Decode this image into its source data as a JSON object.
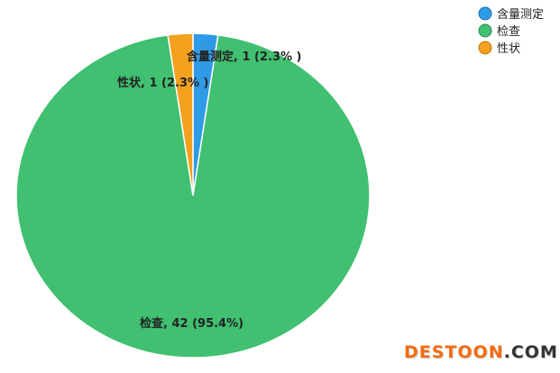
{
  "chart_data": {
    "type": "pie",
    "slices": [
      {
        "name": "含量测定",
        "value": 1,
        "percent": 2.3,
        "color": "#2f9ae6",
        "label": "含量测定, 1 (2.3% )"
      },
      {
        "name": "检查",
        "value": 42,
        "percent": 95.4,
        "color": "#40c070",
        "label": "检查, 42 (95.4%)"
      },
      {
        "name": "性状",
        "value": 1,
        "percent": 2.3,
        "color": "#f4a11f",
        "label": "性状, 1 (2.3% )"
      }
    ],
    "start_angle": "top",
    "direction": "clockwise",
    "legend_position": "top-right",
    "legend": [
      "含量测定",
      "检查",
      "性状"
    ]
  },
  "watermark": {
    "part1": "DESTOON",
    "part2": ".COM"
  }
}
